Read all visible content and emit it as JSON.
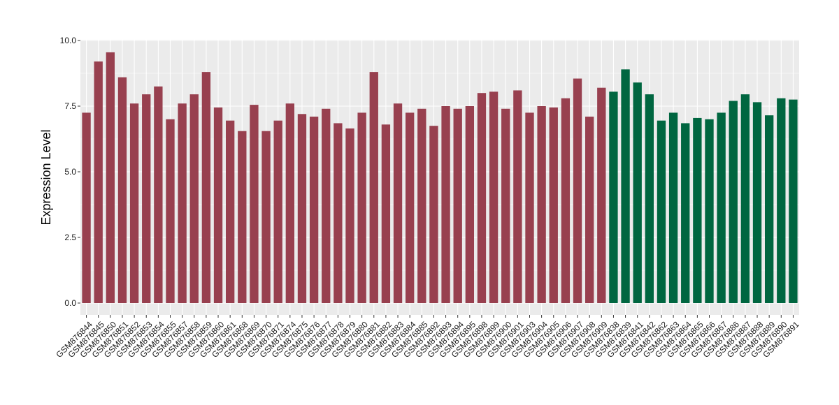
{
  "chart_data": {
    "type": "bar",
    "ylabel": "Expression Level",
    "xlabel": "",
    "ylim": [
      0,
      10
    ],
    "yticks": [
      0.0,
      2.5,
      5.0,
      7.5,
      10.0
    ],
    "ytick_labels": [
      "0.0",
      "2.5",
      "5.0",
      "7.5",
      "10.0"
    ],
    "grid": true,
    "panel_background": "#ebebeb",
    "grid_color": "#ffffff",
    "categories": [
      "GSM876844",
      "GSM876845",
      "GSM876850",
      "GSM876851",
      "GSM876852",
      "GSM876853",
      "GSM876854",
      "GSM876855",
      "GSM876857",
      "GSM876858",
      "GSM876859",
      "GSM876860",
      "GSM876861",
      "GSM876868",
      "GSM876869",
      "GSM876870",
      "GSM876871",
      "GSM876874",
      "GSM876875",
      "GSM876876",
      "GSM876877",
      "GSM876878",
      "GSM876879",
      "GSM876880",
      "GSM876881",
      "GSM876882",
      "GSM876883",
      "GSM876884",
      "GSM876885",
      "GSM876892",
      "GSM876893",
      "GSM876894",
      "GSM876895",
      "GSM876898",
      "GSM876899",
      "GSM876900",
      "GSM876901",
      "GSM876903",
      "GSM876904",
      "GSM876905",
      "GSM876906",
      "GSM876907",
      "GSM876908",
      "GSM876909",
      "GSM876838",
      "GSM876839",
      "GSM876841",
      "GSM876842",
      "GSM876862",
      "GSM876863",
      "GSM876864",
      "GSM876865",
      "GSM876866",
      "GSM876867",
      "GSM876886",
      "GSM876887",
      "GSM876888",
      "GSM876889",
      "GSM876890",
      "GSM876891"
    ],
    "values": [
      7.25,
      9.2,
      9.55,
      8.6,
      7.6,
      7.95,
      8.25,
      7.0,
      7.6,
      7.95,
      8.8,
      7.45,
      6.95,
      6.55,
      7.55,
      6.55,
      6.95,
      7.6,
      7.2,
      7.1,
      7.4,
      6.85,
      6.65,
      7.25,
      8.8,
      6.8,
      7.6,
      7.25,
      7.4,
      6.75,
      7.5,
      7.4,
      7.5,
      8.0,
      8.05,
      7.4,
      8.1,
      7.25,
      7.5,
      7.45,
      7.8,
      8.55,
      7.1,
      8.2,
      8.05,
      8.9,
      8.4,
      7.95,
      6.95,
      7.25,
      6.85,
      7.05,
      7.0,
      7.25,
      7.7,
      7.95,
      7.65,
      7.15,
      7.8,
      7.75
    ],
    "groups": [
      0,
      0,
      0,
      0,
      0,
      0,
      0,
      0,
      0,
      0,
      0,
      0,
      0,
      0,
      0,
      0,
      0,
      0,
      0,
      0,
      0,
      0,
      0,
      0,
      0,
      0,
      0,
      0,
      0,
      0,
      0,
      0,
      0,
      0,
      0,
      0,
      0,
      0,
      0,
      0,
      0,
      0,
      0,
      0,
      1,
      1,
      1,
      1,
      1,
      1,
      1,
      1,
      1,
      1,
      1,
      1,
      1,
      1,
      1,
      1
    ],
    "group_colors": [
      "#98404f",
      "#006640"
    ]
  }
}
